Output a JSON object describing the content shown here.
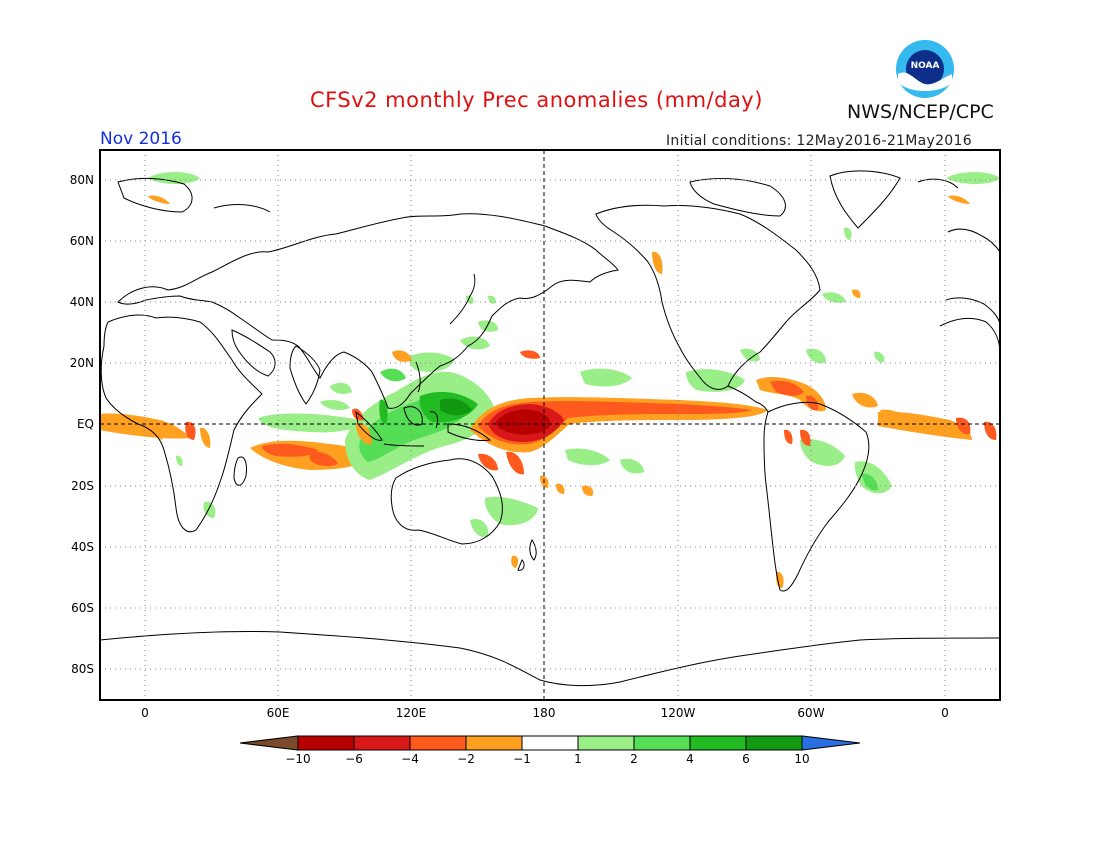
{
  "header": {
    "title": "CFSv2 monthly Prec anomalies (mm/day)",
    "agency": "NWS/NCEP/CPC",
    "logo_text": "NOAA",
    "valid_month": "Nov 2016",
    "initial_conditions": "Initial conditions: 12May2016-21May2016"
  },
  "map": {
    "lat_labels": [
      "80N",
      "60N",
      "40N",
      "20N",
      "EQ",
      "20S",
      "40S",
      "60S",
      "80S"
    ],
    "lon_labels": [
      "0",
      "60E",
      "120E",
      "180",
      "120W",
      "60W",
      "0"
    ]
  },
  "colorbar": {
    "tick_labels": [
      "-10",
      "-6",
      "-4",
      "-2",
      "-1",
      "1",
      "2",
      "4",
      "6",
      "10"
    ],
    "colors": [
      "#7a4a2a",
      "#b80000",
      "#d81818",
      "#ff5a1e",
      "#ffa020",
      "#ffffff",
      "#99ee88",
      "#55dd55",
      "#22bb22",
      "#119a11",
      "#2a6fe0"
    ]
  },
  "colors": {
    "frame": "#000000",
    "grid": "#888888",
    "coast": "#000000"
  }
}
